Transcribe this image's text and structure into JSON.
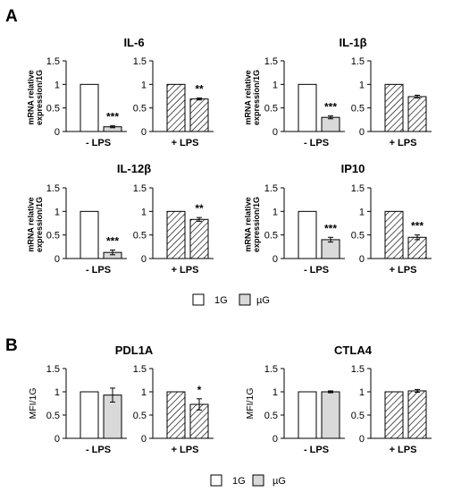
{
  "panels": {
    "A": {
      "letter": "A",
      "legend": [
        {
          "label": "1G",
          "fill": "#ffffff"
        },
        {
          "label": "µG",
          "fill": "#d9d9d9"
        }
      ]
    },
    "B": {
      "letter": "B",
      "legend": [
        {
          "label": "1G",
          "fill": "#ffffff"
        },
        {
          "label": "µG",
          "fill": "#d9d9d9"
        }
      ]
    }
  },
  "colors": {
    "one_g": "#ffffff",
    "micro_g": "#d9d9d9",
    "stroke": "#000000"
  },
  "chart_data": [
    {
      "type": "bar",
      "title": "IL-6",
      "ylabel": "mRNA relative expression/1G",
      "subplots": [
        {
          "category": "- LPS",
          "pattern": "solid",
          "values": [
            1,
            0.1
          ],
          "errors": [
            0,
            0.02
          ],
          "significance": "***"
        },
        {
          "category": "+ LPS",
          "pattern": "hatched",
          "values": [
            1,
            0.69
          ],
          "errors": [
            0,
            0.02
          ],
          "significance": "**"
        }
      ],
      "ylim": [
        0,
        1.5
      ],
      "yticks": [
        "0",
        "0.5",
        "1",
        "1.5"
      ]
    },
    {
      "type": "bar",
      "title": "IL-1β",
      "ylabel": "mRNA relative expression/1G",
      "subplots": [
        {
          "category": "- LPS",
          "pattern": "solid",
          "values": [
            1,
            0.3
          ],
          "errors": [
            0,
            0.03
          ],
          "significance": "***"
        },
        {
          "category": "+ LPS",
          "pattern": "hatched",
          "values": [
            1,
            0.74
          ],
          "errors": [
            0,
            0.03
          ],
          "significance": ""
        }
      ],
      "ylim": [
        0,
        1.5
      ],
      "yticks": [
        "0",
        "0.5",
        "1",
        "1.5"
      ]
    },
    {
      "type": "bar",
      "title": "IL-12β",
      "ylabel": "mRNA relative expression/1G",
      "subplots": [
        {
          "category": "- LPS",
          "pattern": "solid",
          "values": [
            1,
            0.13
          ],
          "errors": [
            0,
            0.05
          ],
          "significance": "***"
        },
        {
          "category": "+ LPS",
          "pattern": "hatched",
          "values": [
            1,
            0.83
          ],
          "errors": [
            0,
            0.04
          ],
          "significance": "**"
        }
      ],
      "ylim": [
        0,
        1.5
      ],
      "yticks": [
        "0",
        "0.5",
        "1",
        "1.5"
      ]
    },
    {
      "type": "bar",
      "title": "IP10",
      "ylabel": "mRNA relative expression/1G",
      "subplots": [
        {
          "category": "- LPS",
          "pattern": "solid",
          "values": [
            1,
            0.4
          ],
          "errors": [
            0,
            0.05
          ],
          "significance": "***"
        },
        {
          "category": "+ LPS",
          "pattern": "hatched",
          "values": [
            1,
            0.45
          ],
          "errors": [
            0,
            0.05
          ],
          "significance": "***"
        }
      ],
      "ylim": [
        0,
        1.5
      ],
      "yticks": [
        "0",
        "0.5",
        "1",
        "1.5"
      ]
    },
    {
      "type": "bar",
      "title": "PDL1A",
      "ylabel": "MFI/1G",
      "subplots": [
        {
          "category": "- LPS",
          "pattern": "solid",
          "values": [
            1,
            0.93
          ],
          "errors": [
            0,
            0.15
          ],
          "significance": ""
        },
        {
          "category": "+ LPS",
          "pattern": "hatched",
          "values": [
            1,
            0.73
          ],
          "errors": [
            0,
            0.12
          ],
          "significance": "*"
        }
      ],
      "ylim": [
        0,
        1.5
      ],
      "yticks": [
        "0",
        "0.5",
        "1",
        "1.5"
      ]
    },
    {
      "type": "bar",
      "title": "CTLA4",
      "ylabel": "MFI/1G",
      "subplots": [
        {
          "category": "- LPS",
          "pattern": "solid",
          "values": [
            1,
            1.0
          ],
          "errors": [
            0,
            0.02
          ],
          "significance": ""
        },
        {
          "category": "+ LPS",
          "pattern": "hatched",
          "values": [
            1,
            1.02
          ],
          "errors": [
            0,
            0.03
          ],
          "significance": ""
        }
      ],
      "ylim": [
        0,
        1.5
      ],
      "yticks": [
        "0",
        "0.5",
        "1",
        "1.5"
      ]
    }
  ]
}
